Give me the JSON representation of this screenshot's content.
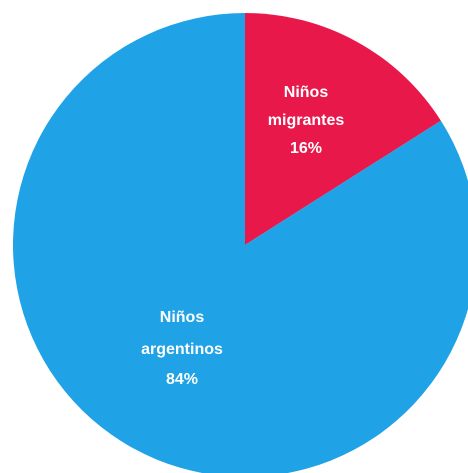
{
  "chart_data": {
    "type": "pie",
    "title": "",
    "slices": [
      {
        "label_line1": "Niños",
        "label_line2": "migrantes",
        "value": 16,
        "value_text": "16%",
        "color": "#e8194a"
      },
      {
        "label_line1": "Niños",
        "label_line2": "argentinos",
        "value": 84,
        "value_text": "84%",
        "color": "#1fa2e6"
      }
    ]
  }
}
